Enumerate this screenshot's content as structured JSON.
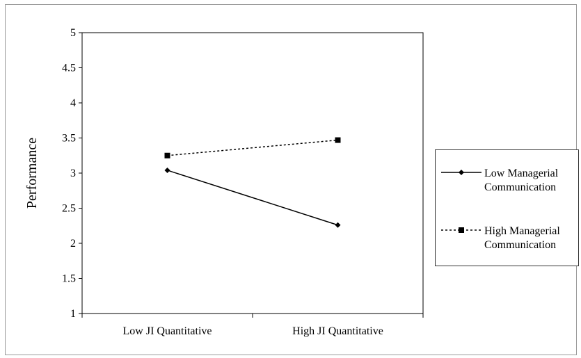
{
  "chart_data": {
    "type": "line",
    "categories": [
      "Low JI Quantitative",
      "High JI Quantitative"
    ],
    "series": [
      {
        "name": "Low Managerial Communication",
        "values": [
          3.04,
          2.26
        ],
        "line_style": "solid",
        "marker": "diamond",
        "color": "#000000"
      },
      {
        "name": "High Managerial Communication",
        "values": [
          3.25,
          3.47
        ],
        "line_style": "dashed",
        "marker": "square",
        "color": "#000000"
      }
    ],
    "ylabel": "Performance",
    "ylim": [
      1,
      5
    ],
    "yticks": [
      "1",
      "1.5",
      "2",
      "2.5",
      "3",
      "3.5",
      "4",
      "4.5",
      "5"
    ],
    "grid": false,
    "legend_position": "right"
  },
  "legend": {
    "items": [
      {
        "line1": "Low Managerial",
        "line2": "Communication"
      },
      {
        "line1": "High Managerial",
        "line2": "Communication"
      }
    ]
  }
}
